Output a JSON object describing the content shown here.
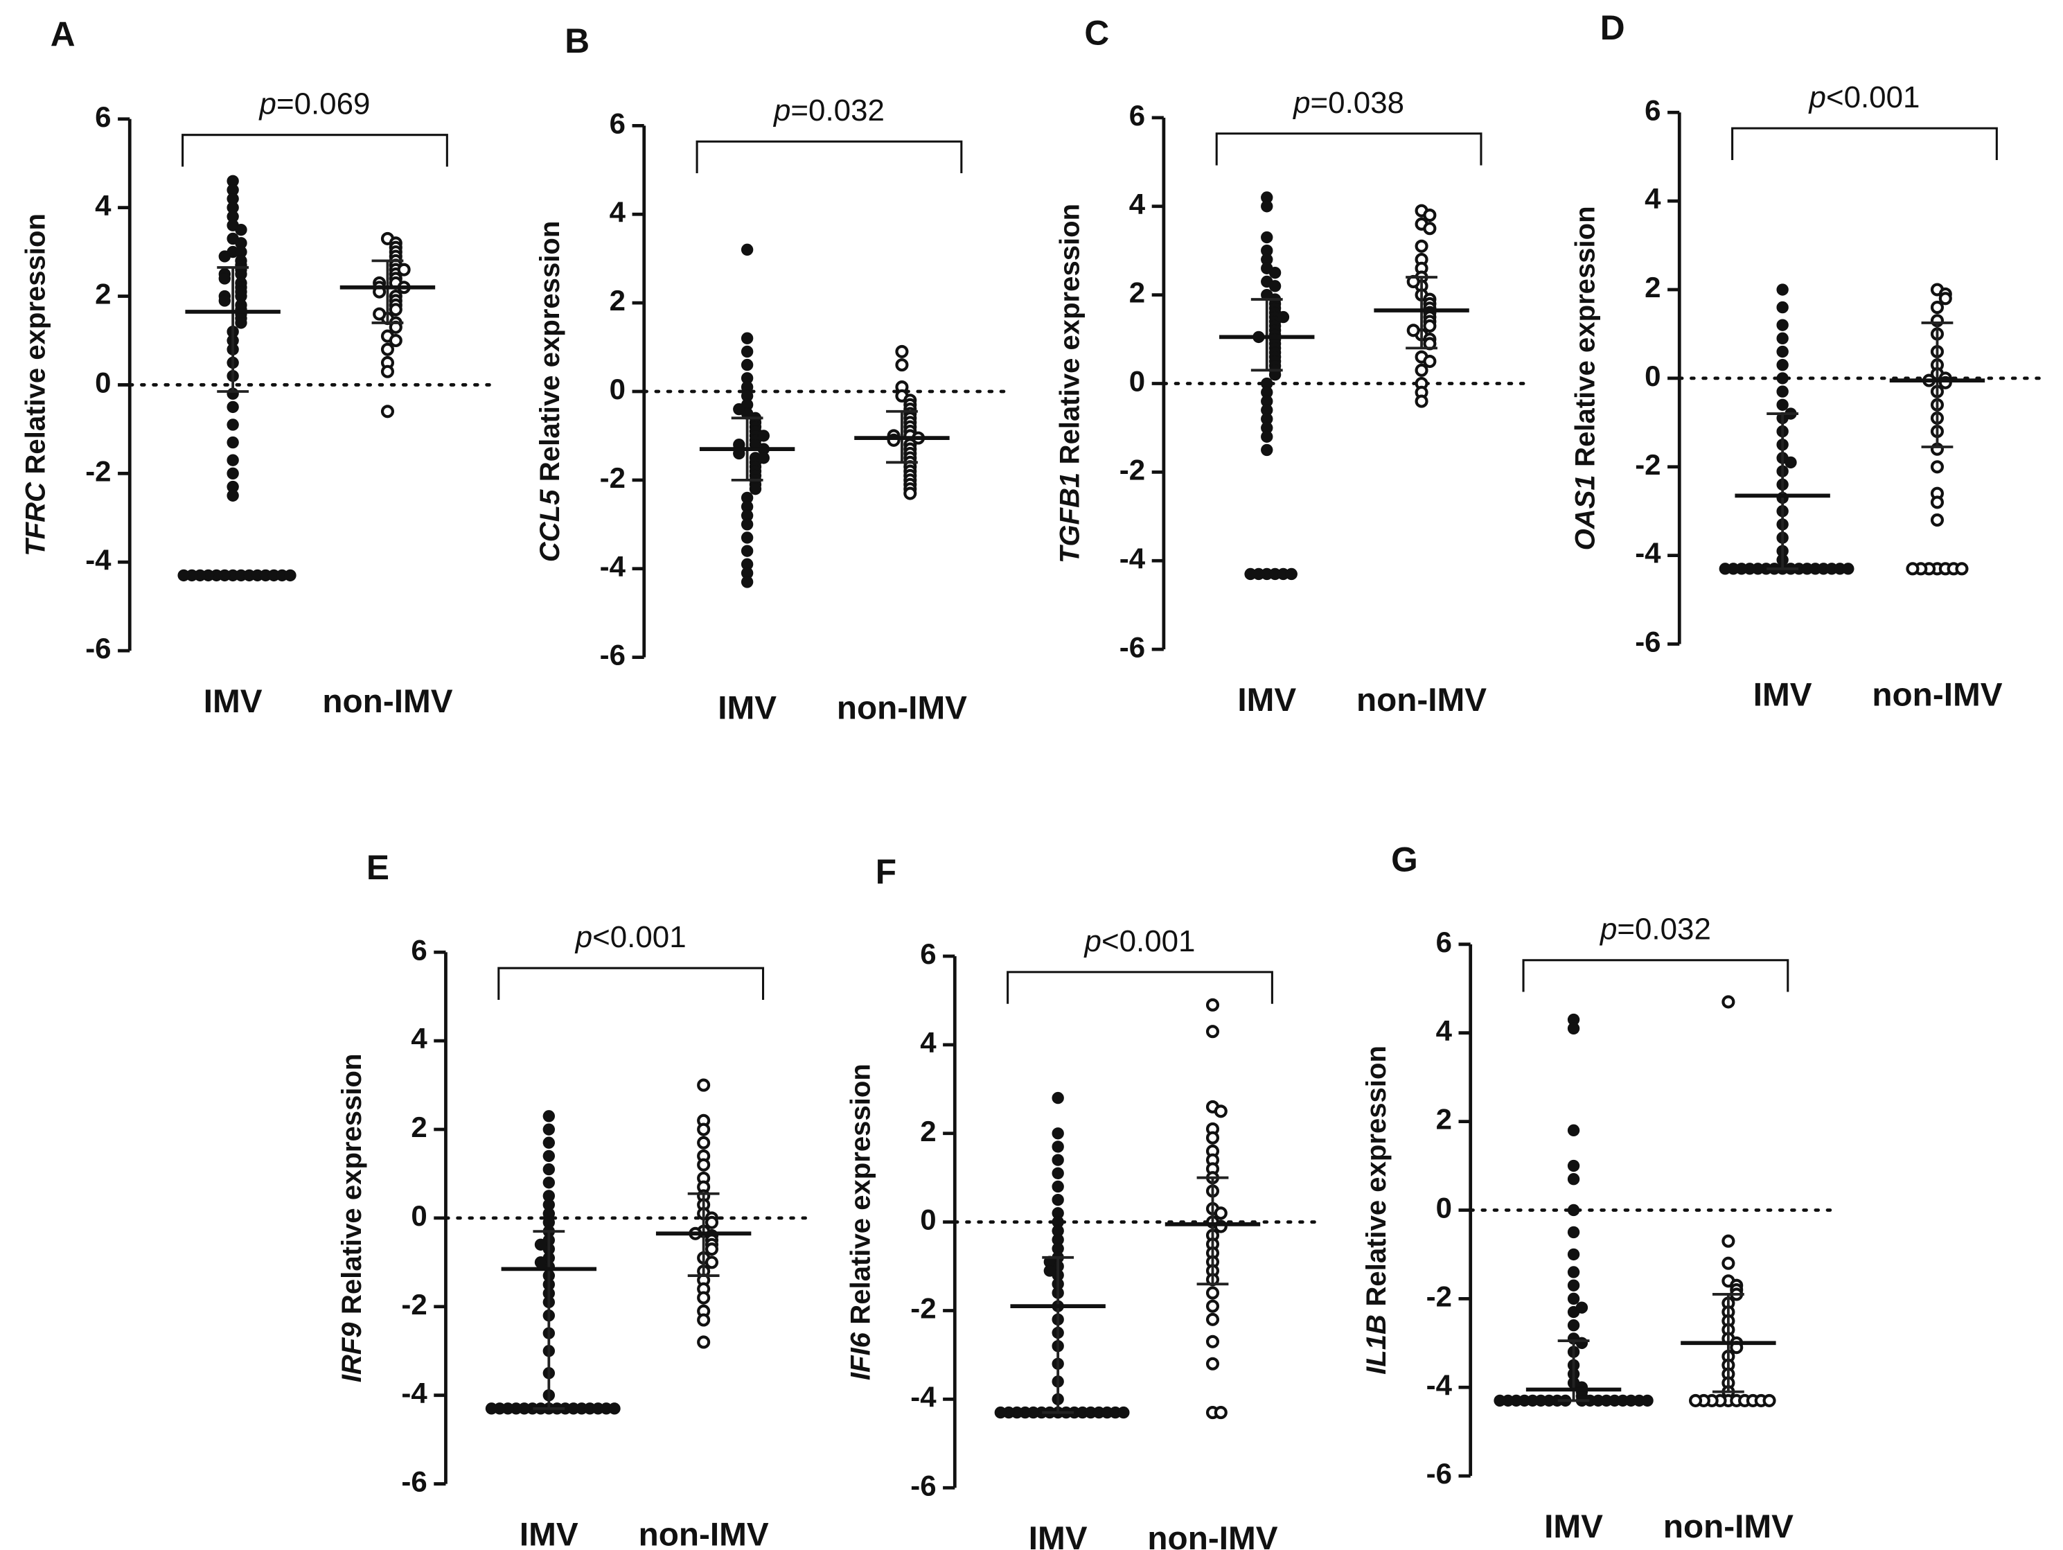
{
  "chart_data": [
    {
      "type": "dot",
      "label": "A",
      "gene": "TFRC",
      "ylabel": "Relative expression",
      "annotation_prefix": "p",
      "annotation": "=0.069",
      "ylim": [
        -6,
        6
      ],
      "yticks": [
        -6,
        -4,
        -2,
        0,
        2,
        4,
        6
      ],
      "series": [
        {
          "name": "IMV",
          "marker": "filled",
          "color": "#111111",
          "median": 1.65,
          "q1": -0.15,
          "q3": 2.65,
          "values": [
            4.6,
            4.4,
            4.2,
            4.0,
            3.8,
            3.6,
            3.5,
            3.3,
            3.2,
            3.0,
            3.0,
            2.9,
            2.8,
            2.7,
            2.6,
            2.5,
            2.5,
            2.4,
            2.3,
            2.2,
            2.1,
            2.0,
            2.0,
            1.9,
            1.8,
            1.7,
            1.6,
            1.5,
            1.4,
            1.2,
            1.0,
            0.8,
            0.5,
            0.2,
            -0.2,
            -0.5,
            -0.9,
            -1.3,
            -1.7,
            -2.0,
            -2.3,
            -2.5,
            -4.3,
            -4.3,
            -4.3,
            -4.3,
            -4.3,
            -4.3,
            -4.3,
            -4.3,
            -4.3,
            -4.3,
            -4.3,
            -4.3,
            -4.3,
            -4.3
          ]
        },
        {
          "name": "non-IMV",
          "marker": "open",
          "color": "#111111",
          "median": 2.2,
          "q1": 1.4,
          "q3": 2.8,
          "values": [
            3.3,
            3.2,
            3.1,
            3.0,
            2.9,
            2.8,
            2.7,
            2.6,
            2.5,
            2.4,
            2.3,
            2.3,
            2.2,
            2.2,
            2.1,
            2.0,
            1.9,
            1.8,
            1.7,
            1.5,
            1.4,
            1.3,
            1.1,
            1.0,
            0.8,
            0.5,
            0.3,
            -0.6,
            2.6,
            1.6
          ]
        }
      ]
    },
    {
      "type": "dot",
      "label": "B",
      "gene": "CCL5",
      "ylabel": "Relative expression",
      "annotation_prefix": "p",
      "annotation": "=0.032",
      "ylim": [
        -6,
        6
      ],
      "yticks": [
        -6,
        -4,
        -2,
        0,
        2,
        4,
        6
      ],
      "series": [
        {
          "name": "IMV",
          "marker": "filled",
          "color": "#111111",
          "median": -1.3,
          "q1": -2.0,
          "q3": -0.6,
          "values": [
            3.2,
            1.2,
            0.9,
            0.6,
            0.3,
            0.1,
            -0.1,
            -0.3,
            -0.5,
            -0.6,
            -0.7,
            -0.8,
            -0.9,
            -1.0,
            -1.1,
            -1.2,
            -1.2,
            -1.3,
            -1.3,
            -1.4,
            -1.5,
            -1.6,
            -1.7,
            -1.8,
            -1.9,
            -2.0,
            -2.1,
            -2.2,
            -2.4,
            -2.6,
            -2.8,
            -3.0,
            -3.3,
            -3.6,
            -3.9,
            -4.1,
            -4.3,
            -1.0,
            -1.5,
            -0.4
          ]
        },
        {
          "name": "non-IMV",
          "marker": "open",
          "color": "#111111",
          "median": -1.05,
          "q1": -1.6,
          "q3": -0.45,
          "values": [
            0.9,
            0.6,
            0.1,
            -0.1,
            -0.2,
            -0.3,
            -0.4,
            -0.5,
            -0.6,
            -0.7,
            -0.8,
            -0.9,
            -1.0,
            -1.0,
            -1.1,
            -1.2,
            -1.3,
            -1.4,
            -1.5,
            -1.6,
            -1.7,
            -1.8,
            -1.9,
            -2.0,
            -2.1,
            -2.2,
            -2.3,
            -1.05
          ]
        }
      ]
    },
    {
      "type": "dot",
      "label": "C",
      "gene": "TGFB1",
      "ylabel": "Relative expression",
      "annotation_prefix": "p",
      "annotation": "=0.038",
      "ylim": [
        -6,
        6
      ],
      "yticks": [
        -6,
        -4,
        -2,
        0,
        2,
        4,
        6
      ],
      "series": [
        {
          "name": "IMV",
          "marker": "filled",
          "color": "#111111",
          "median": 1.05,
          "q1": 0.3,
          "q3": 1.9,
          "values": [
            4.2,
            4.0,
            3.3,
            3.0,
            2.8,
            2.6,
            2.5,
            2.3,
            2.2,
            2.0,
            1.9,
            1.8,
            1.7,
            1.6,
            1.5,
            1.4,
            1.3,
            1.2,
            1.1,
            1.0,
            0.9,
            0.8,
            0.7,
            0.6,
            0.5,
            0.4,
            0.3,
            0.2,
            0.0,
            -0.2,
            -0.4,
            -0.6,
            -0.8,
            -1.0,
            -1.2,
            -1.5,
            -4.3,
            -4.3,
            -4.3,
            -4.3,
            -4.3,
            -4.3,
            1.05,
            1.5
          ]
        },
        {
          "name": "non-IMV",
          "marker": "open",
          "color": "#111111",
          "median": 1.65,
          "q1": 0.8,
          "q3": 2.4,
          "values": [
            3.9,
            3.8,
            3.6,
            3.5,
            3.1,
            2.8,
            2.6,
            2.4,
            2.2,
            2.0,
            1.9,
            1.8,
            1.7,
            1.6,
            1.5,
            1.4,
            1.3,
            1.1,
            1.0,
            0.9,
            0.6,
            0.5,
            0.3,
            0.0,
            -0.2,
            -0.4,
            2.3,
            1.2
          ]
        }
      ]
    },
    {
      "type": "dot",
      "label": "D",
      "gene": "OAS1",
      "ylabel": "Relative expression",
      "annotation_prefix": "p",
      "annotation": "<0.001",
      "ylim": [
        -6,
        6
      ],
      "yticks": [
        -6,
        -4,
        -2,
        0,
        2,
        4,
        6
      ],
      "series": [
        {
          "name": "IMV",
          "marker": "filled",
          "color": "#111111",
          "median": -2.65,
          "q1": -4.3,
          "q3": -0.8,
          "values": [
            2.0,
            1.6,
            1.2,
            0.9,
            0.6,
            0.3,
            0.0,
            -0.3,
            -0.6,
            -0.9,
            -1.2,
            -1.5,
            -1.8,
            -2.1,
            -2.4,
            -2.7,
            -3.0,
            -3.3,
            -3.6,
            -3.9,
            -4.1,
            -4.3,
            -4.3,
            -4.3,
            -4.3,
            -4.3,
            -4.3,
            -4.3,
            -4.3,
            -4.3,
            -4.3,
            -4.3,
            -4.3,
            -4.3,
            -4.3,
            -4.3,
            -4.3,
            -0.8,
            -1.9
          ]
        },
        {
          "name": "non-IMV",
          "marker": "open",
          "color": "#111111",
          "median": -0.05,
          "q1": -1.55,
          "q3": 1.25,
          "values": [
            2.0,
            1.9,
            1.8,
            1.6,
            1.3,
            1.0,
            0.6,
            0.3,
            0.1,
            0.0,
            -0.1,
            -0.3,
            -0.6,
            -0.9,
            -1.2,
            -1.6,
            -2.0,
            -2.6,
            -2.8,
            -3.2,
            -4.3,
            -4.3,
            -4.3,
            -4.3,
            -4.3,
            -4.3,
            -4.3,
            -0.05
          ]
        }
      ]
    },
    {
      "type": "dot",
      "label": "E",
      "gene": "IRF9",
      "ylabel": "Relative expression",
      "annotation_prefix": "p",
      "annotation": "<0.001",
      "ylim": [
        -6,
        6
      ],
      "yticks": [
        -6,
        -4,
        -2,
        0,
        2,
        4,
        6
      ],
      "series": [
        {
          "name": "IMV",
          "marker": "filled",
          "color": "#111111",
          "median": -1.15,
          "q1": -4.3,
          "q3": -0.3,
          "values": [
            2.3,
            2.0,
            1.7,
            1.4,
            1.1,
            0.8,
            0.5,
            0.3,
            0.1,
            -0.1,
            -0.3,
            -0.5,
            -0.7,
            -0.9,
            -1.1,
            -1.3,
            -1.5,
            -1.7,
            -1.9,
            -2.2,
            -2.6,
            -3.0,
            -3.5,
            -4.0,
            -4.3,
            -4.3,
            -4.3,
            -4.3,
            -4.3,
            -4.3,
            -4.3,
            -4.3,
            -4.3,
            -4.3,
            -4.3,
            -4.3,
            -4.3,
            -4.3,
            -4.3,
            -4.3,
            -0.6,
            -1.0
          ]
        },
        {
          "name": "non-IMV",
          "marker": "open",
          "color": "#111111",
          "median": -0.35,
          "q1": -1.3,
          "q3": 0.55,
          "values": [
            3.0,
            2.2,
            2.0,
            1.7,
            1.4,
            1.2,
            0.9,
            0.7,
            0.5,
            0.3,
            0.1,
            0.0,
            -0.1,
            -0.3,
            -0.4,
            -0.5,
            -0.6,
            -0.7,
            -0.9,
            -1.0,
            -1.2,
            -1.4,
            -1.6,
            -1.8,
            -2.1,
            -2.3,
            -2.8,
            -0.35
          ]
        }
      ]
    },
    {
      "type": "dot",
      "label": "F",
      "gene": "IFI6",
      "ylabel": "Relative expression",
      "annotation_prefix": "p",
      "annotation": "<0.001",
      "ylim": [
        -6,
        6
      ],
      "yticks": [
        -6,
        -4,
        -2,
        0,
        2,
        4,
        6
      ],
      "series": [
        {
          "name": "IMV",
          "marker": "filled",
          "color": "#111111",
          "median": -1.9,
          "q1": -4.3,
          "q3": -0.8,
          "values": [
            2.8,
            2.0,
            1.7,
            1.4,
            1.1,
            0.8,
            0.5,
            0.2,
            0.0,
            -0.2,
            -0.4,
            -0.6,
            -0.8,
            -1.0,
            -1.2,
            -1.4,
            -1.6,
            -1.9,
            -2.2,
            -2.5,
            -2.8,
            -3.2,
            -3.6,
            -4.0,
            -4.3,
            -4.3,
            -4.3,
            -4.3,
            -4.3,
            -4.3,
            -4.3,
            -4.3,
            -4.3,
            -4.3,
            -4.3,
            -4.3,
            -4.3,
            -4.3,
            -4.3,
            -4.3,
            -0.9,
            -1.1
          ]
        },
        {
          "name": "non-IMV",
          "marker": "open",
          "color": "#111111",
          "median": -0.05,
          "q1": -1.4,
          "q3": 1.0,
          "values": [
            4.9,
            4.3,
            2.6,
            2.5,
            2.1,
            1.9,
            1.6,
            1.4,
            1.2,
            1.0,
            0.7,
            0.3,
            0.2,
            0.0,
            -0.1,
            -0.3,
            -0.5,
            -0.7,
            -0.9,
            -1.1,
            -1.3,
            -1.6,
            -1.9,
            -2.2,
            -2.7,
            -3.2,
            -4.3,
            -4.3
          ]
        }
      ]
    },
    {
      "type": "dot",
      "label": "G",
      "gene": "IL1B",
      "ylabel": "Relative expression",
      "annotation_prefix": "p",
      "annotation": "=0.032",
      "ylim": [
        -6,
        6
      ],
      "yticks": [
        -6,
        -4,
        -2,
        0,
        2,
        4,
        6
      ],
      "series": [
        {
          "name": "IMV",
          "marker": "filled",
          "color": "#111111",
          "median": -4.05,
          "q1": -4.3,
          "q3": -2.95,
          "values": [
            4.3,
            4.1,
            1.8,
            1.0,
            0.7,
            0.0,
            -0.5,
            -1.0,
            -1.4,
            -1.7,
            -2.0,
            -2.3,
            -2.6,
            -2.9,
            -3.2,
            -3.5,
            -3.7,
            -3.9,
            -4.0,
            -4.1,
            -4.2,
            -4.3,
            -4.3,
            -4.3,
            -4.3,
            -4.3,
            -4.3,
            -4.3,
            -4.3,
            -4.3,
            -4.3,
            -4.3,
            -4.3,
            -4.3,
            -4.3,
            -4.3,
            -4.3,
            -4.3,
            -4.3,
            -3.0,
            -2.2
          ]
        },
        {
          "name": "non-IMV",
          "marker": "open",
          "color": "#111111",
          "median": -3.0,
          "q1": -4.1,
          "q3": -1.9,
          "values": [
            4.7,
            -0.7,
            -1.2,
            -1.6,
            -1.7,
            -1.8,
            -1.9,
            -2.1,
            -2.3,
            -2.5,
            -2.7,
            -2.9,
            -3.0,
            -3.1,
            -3.3,
            -3.5,
            -3.7,
            -3.9,
            -4.1,
            -4.3,
            -4.3,
            -4.3,
            -4.3,
            -4.3,
            -4.3,
            -4.3,
            -4.3,
            -4.3,
            -4.3
          ]
        }
      ]
    }
  ]
}
